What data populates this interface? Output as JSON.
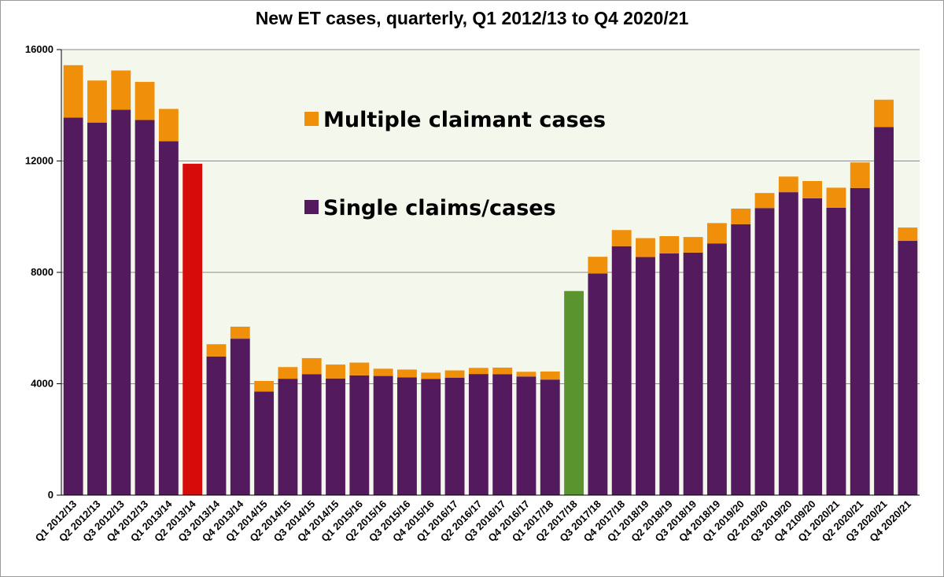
{
  "chart_data": {
    "type": "bar",
    "stacked": true,
    "title": "New ET cases, quarterly, Q1 2012/13 to Q4 2020/21",
    "xlabel": "",
    "ylabel": "",
    "ylim": [
      0,
      16000
    ],
    "yticks": [
      "0",
      "4000",
      "8000",
      "12000",
      "16000"
    ],
    "grid": true,
    "legend_placement": "center",
    "categories": [
      "Q1 2012/13",
      "Q2 2012/13",
      "Q3 2012/13",
      "Q4 2012/13",
      "Q1 2013/14",
      "Q2 2013/14",
      "Q3 2013/14",
      "Q4 2013/14",
      "Q1 2014/15",
      "Q2 2014/15",
      "Q3 2014/15",
      "Q4 2014/15",
      "Q1 2015/16",
      "Q2 2015/16",
      "Q3 2015/16",
      "Q4 2015/16",
      "Q1 2016/17",
      "Q2 2016/17",
      "Q3 2016/17",
      "Q4 2016/17",
      "Q1 2017/18",
      "Q2 2017/18",
      "Q3 2017/18",
      "Q4 2017/18",
      "Q1 2018/19",
      "Q2 2018/19",
      "Q3 2018/19",
      "Q4 2018/19",
      "Q1 2019/20",
      "Q2 2019/20",
      "Q3 2019/20",
      "Q4 2109/20",
      "Q1 2020/21",
      "Q2 2020/21",
      "Q3 2020/21",
      "Q4 2020/21"
    ],
    "series": [
      {
        "name": "Single claims/cases",
        "color": "#541a5e",
        "values": [
          13560,
          13380,
          13840,
          13470,
          12710,
          11900,
          4980,
          5620,
          3720,
          4180,
          4340,
          4190,
          4300,
          4280,
          4230,
          4170,
          4220,
          4350,
          4340,
          4260,
          4150,
          7330,
          7960,
          8940,
          8550,
          8680,
          8710,
          9040,
          9730,
          10310,
          10880,
          10660,
          10320,
          11030,
          13220,
          9130
        ]
      },
      {
        "name": "Multiple claimant cases",
        "color": "#f0900a",
        "values": [
          1880,
          1510,
          1410,
          1370,
          1160,
          0,
          440,
          430,
          380,
          420,
          580,
          500,
          460,
          260,
          280,
          230,
          260,
          220,
          240,
          170,
          290,
          0,
          600,
          580,
          680,
          620,
          560,
          730,
          560,
          540,
          560,
          620,
          720,
          920,
          980,
          480
        ]
      }
    ],
    "highlights": [
      {
        "category": "Q2 2013/14",
        "color": "#d80b0b"
      },
      {
        "category": "Q2 2017/18",
        "color": "#5a942e"
      }
    ],
    "legend": {
      "multiple_label": "Multiple claimant cases",
      "single_label": "Single claims/cases"
    },
    "colors": {
      "plot_background": "#f3f7ec",
      "gridline": "#8a8a8a"
    }
  }
}
